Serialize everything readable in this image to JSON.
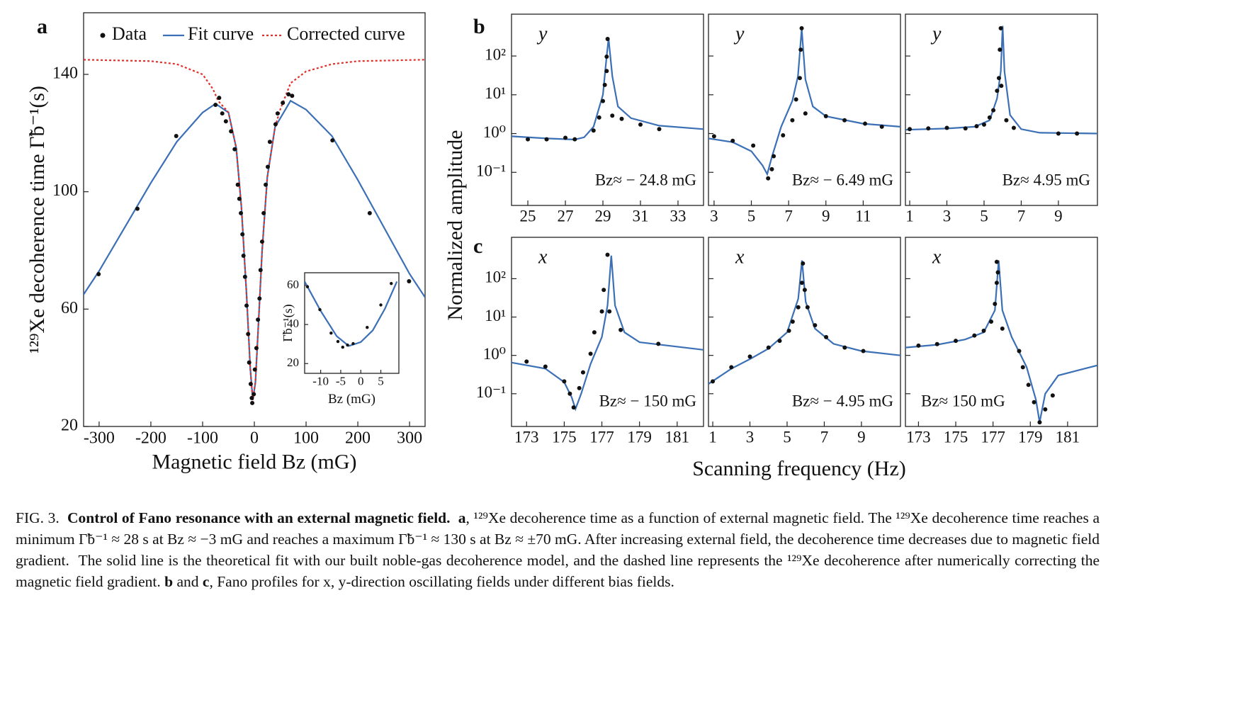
{
  "panels": [
    "a",
    "b",
    "c"
  ],
  "shared_ylabel": "Normalized  amplitude",
  "shared_xlabel": "Scanning frequency (Hz)",
  "chart_data": [
    {
      "type": "scatter",
      "xlabel": "Magnetic field Bz (mG)",
      "ylabel": "¹²⁹Xe  decoherence time Γ̃b⁻¹(s)",
      "xlim": [
        -330,
        330
      ],
      "ylim": [
        20,
        161
      ],
      "xticks": [
        -300,
        -200,
        -100,
        0,
        100,
        200,
        300
      ],
      "yticks": [
        20,
        60,
        100,
        140
      ],
      "legend": "upper center",
      "series": [
        {
          "name": "Data",
          "kind": "points",
          "color": "#111111",
          "x": [
            -301,
            -226,
            -151,
            -75,
            -68,
            -62,
            -55,
            -45,
            -38,
            -32,
            -29,
            -26,
            -23,
            -21,
            -18,
            -15,
            -12,
            -10,
            -7,
            -5,
            -4,
            -1,
            1,
            4,
            7,
            10,
            12,
            15,
            18,
            22,
            26,
            30,
            41,
            45,
            55,
            66,
            73,
            151,
            223,
            299
          ],
          "values": [
            71.9,
            94.2,
            119,
            129.6,
            132,
            126.7,
            124,
            120.6,
            114.5,
            102.4,
            97.6,
            92.7,
            85.5,
            78.2,
            71,
            61.2,
            51.5,
            41.8,
            34.5,
            29.7,
            28,
            31,
            39.4,
            46.7,
            56.4,
            63.6,
            73.3,
            83,
            92.7,
            102.4,
            108.5,
            117,
            123,
            126.7,
            130.3,
            133.2,
            132.7,
            117.5,
            92.7,
            69.5
          ]
        },
        {
          "name": "Fit curve",
          "kind": "line",
          "color": "#3b6fb6",
          "x": [
            -330,
            -300,
            -250,
            -200,
            -150,
            -100,
            -75,
            -50,
            -35,
            -25,
            -15,
            -8,
            -3,
            2,
            8,
            15,
            25,
            40,
            70,
            100,
            150,
            200,
            250,
            300,
            330
          ],
          "values": [
            65,
            73,
            88,
            103,
            117,
            127,
            130,
            127,
            115,
            95,
            65,
            40,
            29,
            35,
            55,
            80,
            105,
            122,
            131,
            128,
            119,
            104,
            88,
            72,
            64
          ]
        },
        {
          "name": "Corrected curve",
          "kind": "line",
          "line_style": "dotted",
          "color": "#e0302a",
          "x": [
            -330,
            -200,
            -150,
            -100,
            -80,
            -70,
            -50,
            -35,
            -25,
            -15,
            -8,
            -3,
            2,
            8,
            15,
            25,
            40,
            50,
            70,
            100,
            150,
            200,
            330
          ],
          "values": [
            145,
            144.5,
            143.5,
            140,
            135,
            131,
            127,
            115,
            95,
            65,
            40,
            29,
            35,
            55,
            80,
            105,
            122,
            128,
            137,
            141,
            143.5,
            144.5,
            145
          ]
        }
      ]
    },
    {
      "type": "scatter",
      "xlabel": "Bz  (mG)",
      "ylabel": "Γ̃b⁻¹(s)",
      "xlim": [
        -14,
        9.5
      ],
      "ylim": [
        15,
        66.5
      ],
      "xticks": [
        -10,
        -5,
        0,
        5
      ],
      "yticks": [
        20,
        40,
        60
      ],
      "series": [
        {
          "kind": "points",
          "color": "#111111",
          "x": [
            -13.3,
            -10.2,
            -7.4,
            -5.7,
            -4.5,
            -3.3,
            -1.9,
            1.6,
            5,
            7.6
          ],
          "values": [
            59.3,
            47.6,
            35.6,
            31.3,
            28.4,
            29.5,
            30.2,
            38.5,
            50,
            61
          ]
        },
        {
          "kind": "line",
          "color": "#3b6fb6",
          "x": [
            -14,
            -10,
            -6,
            -3,
            0,
            3,
            6,
            9
          ],
          "values": [
            62,
            47,
            34,
            29,
            31,
            37,
            48,
            62
          ]
        }
      ]
    },
    {
      "type": "scatter",
      "log_y": true,
      "axis_letter": "y",
      "annotation": "Bz≈ − 24.8 mG",
      "annotation_corner": "lower right",
      "xlim": [
        24.13,
        34.36
      ],
      "ylim": [
        0.014,
        1200
      ],
      "xticks": [
        25,
        27,
        29,
        31,
        33
      ],
      "yticks": [
        {
          "value": 0.1,
          "label": "10⁻¹"
        },
        {
          "value": 1,
          "label": "10⁰"
        },
        {
          "value": 10,
          "label": "10¹"
        },
        {
          "value": 100,
          "label": "10²"
        }
      ],
      "series": [
        {
          "kind": "points",
          "color": "#111111",
          "x": [
            25,
            26,
            27,
            27.5,
            28.5,
            28.8,
            29,
            29.1,
            29.2,
            29.2,
            29.25,
            29.5,
            30,
            31,
            32
          ],
          "values": [
            0.71,
            0.71,
            0.78,
            0.71,
            1.2,
            2.6,
            6.9,
            18,
            41,
            96,
            275,
            2.9,
            2.4,
            1.7,
            1.3
          ]
        },
        {
          "kind": "line",
          "color": "#3b6fb6",
          "x": [
            24.13,
            26,
            27.5,
            28,
            28.5,
            29,
            29.2,
            29.3,
            29.5,
            29.8,
            30.5,
            32,
            34.36
          ],
          "values": [
            0.85,
            0.75,
            0.7,
            0.8,
            1.5,
            10,
            100,
            280,
            30,
            5,
            2.5,
            1.6,
            1.3
          ]
        }
      ]
    },
    {
      "type": "scatter",
      "log_y": true,
      "ytick_labels": false,
      "axis_letter": "y",
      "annotation": "Bz≈ − 6.49 mG",
      "annotation_corner": "lower right",
      "xlim": [
        2.7,
        13.0
      ],
      "ylim": [
        0.014,
        1200
      ],
      "xticks": [
        3,
        5,
        7,
        9,
        11
      ],
      "yticks": [
        0.1,
        1,
        10,
        100
      ],
      "series": [
        {
          "kind": "points",
          "color": "#111111",
          "x": [
            3,
            4,
            5.1,
            5.9,
            6.1,
            6.2,
            6.7,
            7.2,
            7.4,
            7.6,
            7.65,
            7.7,
            7.9,
            9,
            10,
            11.1,
            12
          ],
          "values": [
            0.85,
            0.65,
            0.49,
            0.07,
            0.12,
            0.26,
            0.9,
            2.2,
            7.6,
            27,
            146,
            520,
            3.3,
            2.8,
            2.2,
            1.8,
            1.5
          ]
        },
        {
          "kind": "line",
          "color": "#3b6fb6",
          "x": [
            2.7,
            4,
            5,
            5.6,
            5.85,
            6.1,
            6.6,
            7.2,
            7.5,
            7.7,
            7.9,
            8.3,
            9,
            11,
            13
          ],
          "values": [
            0.75,
            0.6,
            0.35,
            0.15,
            0.09,
            0.25,
            1.5,
            7,
            30,
            500,
            25,
            5,
            2.8,
            1.8,
            1.5
          ]
        }
      ]
    },
    {
      "type": "scatter",
      "log_y": true,
      "ytick_labels": false,
      "axis_letter": "y",
      "annotation": "Bz≈ 4.95 mG",
      "annotation_corner": "lower right",
      "xlim": [
        0.77,
        11.1
      ],
      "ylim": [
        0.014,
        1200
      ],
      "xticks": [
        1,
        3,
        5,
        7,
        9
      ],
      "yticks": [
        0.1,
        1,
        10,
        100
      ],
      "series": [
        {
          "kind": "points",
          "color": "#111111",
          "x": [
            1,
            2,
            3,
            4,
            4.6,
            5,
            5.3,
            5.5,
            5.7,
            5.8,
            5.85,
            5.9,
            5.93,
            6.2,
            6.6,
            9,
            10
          ],
          "values": [
            1.3,
            1.36,
            1.4,
            1.36,
            1.55,
            1.7,
            2.6,
            4,
            12.7,
            27,
            146,
            520,
            17,
            2.2,
            1.4,
            1.0,
            1.0
          ]
        },
        {
          "kind": "line",
          "color": "#3b6fb6",
          "x": [
            0.77,
            3,
            4.5,
            5.3,
            5.7,
            5.9,
            6.0,
            6.1,
            6.4,
            7,
            8,
            11.1
          ],
          "values": [
            1.25,
            1.35,
            1.5,
            2.2,
            8,
            40,
            600,
            40,
            3,
            1.3,
            1.05,
            1.0
          ]
        }
      ]
    },
    {
      "type": "scatter",
      "log_y": true,
      "axis_letter": "x",
      "annotation": "Bz≈ − 150 mG",
      "annotation_corner": "lower right",
      "xlim": [
        172.2,
        182.4
      ],
      "ylim": [
        0.014,
        1200
      ],
      "xticks": [
        173,
        175,
        177,
        179,
        181
      ],
      "yticks": [
        {
          "value": 0.1,
          "label": "10⁻¹"
        },
        {
          "value": 1,
          "label": "10⁰"
        },
        {
          "value": 10,
          "label": "10¹"
        },
        {
          "value": 100,
          "label": "10²"
        }
      ],
      "series": [
        {
          "kind": "points",
          "color": "#111111",
          "x": [
            173,
            174,
            175,
            175.3,
            175.5,
            175.8,
            176,
            176.4,
            176.6,
            177,
            177.1,
            177.3,
            177.4,
            178,
            180
          ],
          "values": [
            0.69,
            0.51,
            0.21,
            0.1,
            0.044,
            0.14,
            0.36,
            1.1,
            4,
            14,
            51,
            420,
            14,
            4.6,
            2.0
          ]
        },
        {
          "kind": "line",
          "color": "#3b6fb6",
          "x": [
            172.2,
            174,
            175,
            175.4,
            175.6,
            175.9,
            176.4,
            177,
            177.3,
            177.5,
            177.7,
            178.2,
            179,
            182.4
          ],
          "values": [
            0.65,
            0.45,
            0.2,
            0.08,
            0.04,
            0.1,
            0.6,
            3,
            20,
            400,
            20,
            4,
            2.2,
            1.4
          ]
        }
      ]
    },
    {
      "type": "scatter",
      "log_y": true,
      "ytick_labels": false,
      "axis_letter": "x",
      "annotation": "Bz≈ − 4.95 mG",
      "annotation_corner": "lower right",
      "xlim": [
        0.77,
        11.1
      ],
      "ylim": [
        0.014,
        1200
      ],
      "xticks": [
        1,
        3,
        5,
        7,
        9
      ],
      "yticks": [
        0.1,
        1,
        10,
        100
      ],
      "series": [
        {
          "kind": "points",
          "color": "#111111",
          "x": [
            1,
            2,
            3,
            4,
            4.6,
            5.1,
            5.3,
            5.6,
            5.8,
            5.85,
            5.95,
            6.1,
            6.5,
            7.1,
            8.1,
            9.1
          ],
          "values": [
            0.21,
            0.49,
            0.93,
            1.6,
            2.4,
            4.4,
            7.6,
            18,
            78,
            250,
            51,
            18,
            6.1,
            3,
            1.6,
            1.3
          ]
        },
        {
          "kind": "line",
          "color": "#3b6fb6",
          "x": [
            0.77,
            2,
            3,
            4,
            5,
            5.6,
            5.8,
            6.0,
            6.5,
            7.5,
            9,
            11.1
          ],
          "values": [
            0.18,
            0.45,
            0.8,
            1.5,
            4,
            30,
            300,
            25,
            5,
            2,
            1.3,
            1.0
          ]
        }
      ]
    },
    {
      "type": "scatter",
      "log_y": true,
      "ytick_labels": false,
      "axis_letter": "x",
      "annotation": "Bz≈ 150 mG",
      "annotation_corner": "lower left",
      "xlim": [
        172.3,
        182.6
      ],
      "ylim": [
        0.014,
        1200
      ],
      "xticks": [
        173,
        175,
        177,
        179,
        181
      ],
      "yticks": [
        0.1,
        1,
        10,
        100
      ],
      "series": [
        {
          "kind": "points",
          "color": "#111111",
          "x": [
            173,
            174,
            175,
            176,
            176.5,
            176.9,
            177.1,
            177.2,
            177.2,
            177.26,
            177.5,
            178.4,
            178.6,
            178.9,
            179.2,
            179.5,
            179.8,
            180.2
          ],
          "values": [
            1.8,
            1.97,
            2.4,
            3.3,
            4.4,
            7.6,
            22,
            78,
            275,
            146,
            5,
            1.3,
            0.49,
            0.17,
            0.06,
            0.018,
            0.039,
            0.09
          ]
        },
        {
          "kind": "line",
          "color": "#3b6fb6",
          "x": [
            172.3,
            174,
            175.5,
            176.5,
            177.1,
            177.3,
            177.5,
            178,
            178.8,
            179.3,
            179.5,
            179.8,
            180.5,
            182.6
          ],
          "values": [
            1.6,
            1.9,
            2.6,
            4,
            15,
            300,
            15,
            3,
            0.5,
            0.07,
            0.018,
            0.1,
            0.3,
            0.55
          ]
        }
      ]
    }
  ],
  "caption": {
    "segments": [
      {
        "text": "FIG. 3.  ",
        "bold": false
      },
      {
        "text": "Control of Fano resonance with an external magnetic field.",
        "bold": true
      },
      {
        "text": "  ",
        "bold": false
      },
      {
        "text": "a",
        "bold": true
      },
      {
        "text": ", ¹²⁹Xe decoherence time as a function of external magnetic field. The ¹²⁹Xe decoherence time reaches a minimum Γ̃b⁻¹ ≈ 28 s at Bz ≈ −3 mG and reaches a maximum Γ̃b⁻¹ ≈ 130 s at Bz ≈ ±70 mG. After increasing external field, the decoherence time decreases due to magnetic field gradient.  The solid line is the theoretical fit with our built noble-gas decoherence model, and the dashed line represents the ¹²⁹Xe decoherence after numerically correcting the magnetic field gradient. ",
        "bold": false
      },
      {
        "text": "b",
        "bold": true
      },
      {
        "text": " and ",
        "bold": false
      },
      {
        "text": "c",
        "bold": true
      },
      {
        "text": ", Fano profiles for x, y-direction oscillating fields under different bias fields.",
        "bold": false
      }
    ]
  }
}
